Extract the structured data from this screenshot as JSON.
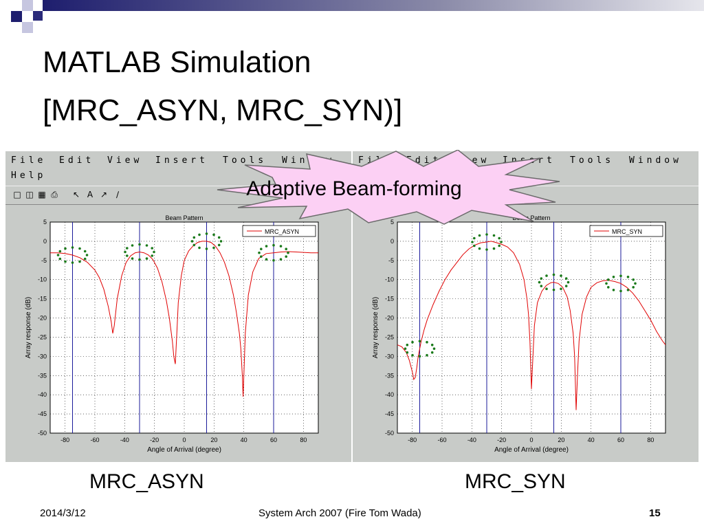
{
  "slide": {
    "title_line1": "MATLAB Simulation",
    "title_line2": "[MRC_ASYN, MRC_SYN)]",
    "callout": "Adaptive Beam-forming",
    "caption_left": "MRC_ASYN",
    "caption_right": "MRC_SYN",
    "footer_date": "2014/3/12",
    "footer_center": "System Arch 2007  (Fire Tom Wada)",
    "page_number": "15",
    "colors": {
      "title_bar": "#2a2a7a",
      "accent_square": "#1e1e6e",
      "callout_fill": "#fcd0f4",
      "curve": "#e00000",
      "reference_lines": "#1a1a9a",
      "dotted_markers": "#1a7a1a",
      "window_bg": "#c8cbc8"
    }
  },
  "window": {
    "menu_row1": [
      "File",
      "Edit",
      "View",
      "Insert",
      "Tools",
      "Window"
    ],
    "menu_row2": [
      "Help"
    ],
    "toolbar_icons": [
      "new-icon",
      "open-icon",
      "save-icon",
      "print-icon",
      "pointer-icon",
      "text-icon",
      "arrow-icon",
      "line-icon"
    ]
  },
  "chart_data": [
    {
      "type": "line",
      "title": "Beam Pattern",
      "xlabel": "Angle of Arrival (degree)",
      "ylabel": "Array response (dB)",
      "xlim": [
        -90,
        90
      ],
      "ylim": [
        -50,
        5
      ],
      "xticks": [
        -80,
        -60,
        -40,
        -20,
        0,
        20,
        40,
        60,
        80
      ],
      "yticks": [
        5,
        0,
        -5,
        -10,
        -15,
        -20,
        -25,
        -30,
        -35,
        -40,
        -45,
        -50
      ],
      "grid": true,
      "legend_position": "top-right",
      "series": [
        {
          "name": "MRC_ASYN",
          "x": [
            -90,
            -85,
            -80,
            -75,
            -70,
            -65,
            -60,
            -57,
            -54,
            -51,
            -49,
            -48,
            -47,
            -45,
            -42,
            -39,
            -36,
            -33,
            -30,
            -27,
            -24,
            -21,
            -18,
            -15,
            -12,
            -10,
            -8,
            -7,
            -6,
            -5,
            -4,
            -2,
            0,
            3,
            6,
            9,
            12,
            15,
            18,
            21,
            24,
            27,
            30,
            33,
            35,
            37,
            38,
            39,
            39.5,
            40,
            41,
            43,
            46,
            50,
            55,
            60,
            65,
            70,
            75,
            80,
            85,
            90
          ],
          "y": [
            -3,
            -3,
            -3.2,
            -3.6,
            -4.3,
            -5.5,
            -7.5,
            -9.5,
            -12.5,
            -17,
            -21,
            -24,
            -22,
            -15,
            -9,
            -5.5,
            -3.8,
            -3,
            -2.8,
            -3,
            -3.6,
            -4.8,
            -7,
            -10.5,
            -15.5,
            -20,
            -26,
            -30,
            -32,
            -24,
            -16,
            -9,
            -5,
            -2.5,
            -1.2,
            -0.3,
            0,
            0,
            -0.3,
            -1.3,
            -3,
            -5.5,
            -9,
            -14,
            -18.5,
            -24,
            -28,
            -35,
            -40.5,
            -35,
            -24,
            -14,
            -8,
            -4.5,
            -3.2,
            -3,
            -2.8,
            -2.7,
            -2.8,
            -2.9,
            -3,
            -3
          ],
          "reference_lines_x": [
            -75,
            -30,
            15,
            60
          ]
        }
      ]
    },
    {
      "type": "line",
      "title": "Beam Pattern",
      "xlabel": "Angle of Arrival (degree)",
      "ylabel": "Array response (dB)",
      "xlim": [
        -90,
        90
      ],
      "ylim": [
        -50,
        5
      ],
      "xticks": [
        -80,
        -60,
        -40,
        -20,
        0,
        20,
        40,
        60,
        80
      ],
      "yticks": [
        5,
        0,
        -5,
        -10,
        -15,
        -20,
        -25,
        -30,
        -35,
        -40,
        -45,
        -50
      ],
      "grid": true,
      "legend_position": "top-right",
      "series": [
        {
          "name": "MRC_SYN",
          "x": [
            -90,
            -87,
            -84,
            -82,
            -80,
            -79,
            -78,
            -77,
            -76,
            -74,
            -72,
            -70,
            -66,
            -62,
            -58,
            -54,
            -50,
            -46,
            -42,
            -38,
            -34,
            -30,
            -27,
            -24,
            -20,
            -16,
            -12,
            -8,
            -5,
            -3,
            -2,
            -1,
            0,
            1,
            2,
            4,
            7,
            10,
            13,
            15,
            18,
            21,
            24,
            26,
            28,
            29,
            30,
            31,
            32,
            34,
            37,
            40,
            44,
            48,
            52,
            56,
            60,
            64,
            68,
            72,
            76,
            80,
            84,
            88,
            90
          ],
          "y": [
            -27,
            -27.5,
            -29,
            -31,
            -34,
            -36,
            -35.5,
            -33,
            -30,
            -26,
            -23,
            -20.5,
            -16.5,
            -13,
            -10,
            -7.5,
            -5.5,
            -3.5,
            -2,
            -1,
            -0.4,
            -0.2,
            0,
            -0.3,
            -0.8,
            -1.5,
            -3,
            -6,
            -10,
            -15,
            -19,
            -26,
            -38.5,
            -30,
            -22,
            -16,
            -13,
            -11.5,
            -10.8,
            -10.7,
            -11,
            -12,
            -14.5,
            -18,
            -24,
            -30,
            -44,
            -34,
            -26,
            -19,
            -14.5,
            -12,
            -10.8,
            -10.3,
            -10.2,
            -10.5,
            -11,
            -12,
            -13.5,
            -15.5,
            -18,
            -20.5,
            -23.5,
            -26,
            -27
          ]
        }
      ],
      "reference_lines_x": [
        -75,
        -30,
        15,
        60
      ]
    }
  ]
}
